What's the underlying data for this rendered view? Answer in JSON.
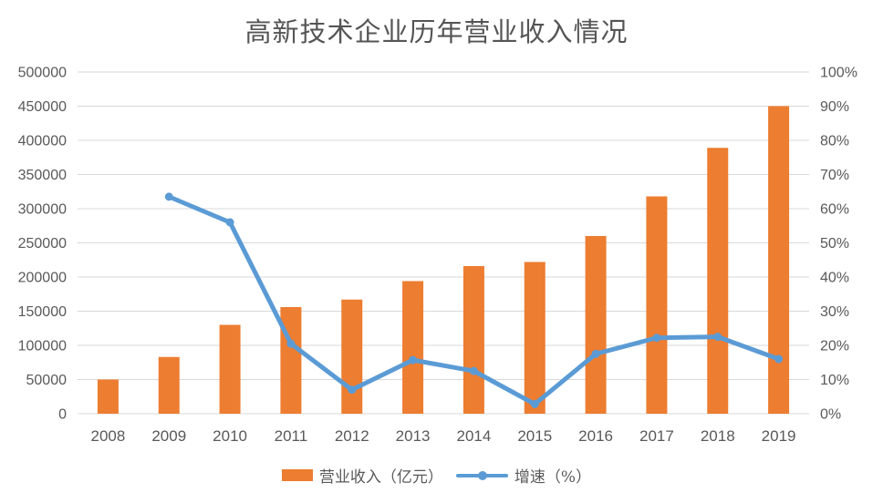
{
  "title": "高新技术企业历年营业收入情况",
  "legend": {
    "bar_label": "营业收入（亿元）",
    "line_label": "增速（%）"
  },
  "colors": {
    "bar": "#ED7D31",
    "line": "#5B9BD5",
    "grid": "#D9D9D9",
    "tick_text": "#595959",
    "title_text": "#555555"
  },
  "chart_data": {
    "type": "bar",
    "subtype": "combo-bar-line",
    "title": "高新技术企业历年营业收入情况",
    "categories": [
      "2008",
      "2009",
      "2010",
      "2011",
      "2012",
      "2013",
      "2014",
      "2015",
      "2016",
      "2017",
      "2018",
      "2019"
    ],
    "series": [
      {
        "name": "营业收入（亿元）",
        "chart": "bar",
        "axis": "left",
        "values": [
          50000,
          83000,
          130000,
          156000,
          167000,
          194000,
          216000,
          222000,
          260000,
          318000,
          389000,
          450000
        ]
      },
      {
        "name": "增速（%）",
        "chart": "line",
        "axis": "right",
        "values": [
          null,
          63.5,
          56,
          20.5,
          7,
          15.7,
          12.5,
          2.8,
          17.5,
          22.2,
          22.5,
          16
        ]
      }
    ],
    "left_axis": {
      "min": 0,
      "max": 500000,
      "step": 50000,
      "tick_labels": [
        "0",
        "50000",
        "100000",
        "150000",
        "200000",
        "250000",
        "300000",
        "350000",
        "400000",
        "450000",
        "500000"
      ]
    },
    "right_axis": {
      "min": 0,
      "max": 100,
      "step": 10,
      "tick_labels": [
        "0%",
        "10%",
        "20%",
        "30%",
        "40%",
        "50%",
        "60%",
        "70%",
        "80%",
        "90%",
        "100%"
      ]
    },
    "xlabel": "",
    "ylabel": "",
    "grid": true,
    "legend_position": "bottom"
  }
}
